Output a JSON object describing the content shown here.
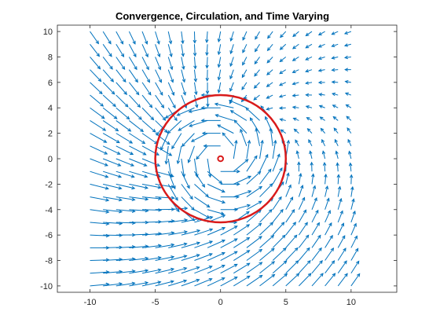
{
  "chart_data": {
    "type": "quiver",
    "title": "Convergence, Circulation, and Time Varying",
    "xlabel": "",
    "ylabel": "",
    "xlim": [
      -12.5,
      13.5
    ],
    "ylim": [
      -10.5,
      10.5
    ],
    "x_ticks": [
      -10,
      -5,
      0,
      5,
      10
    ],
    "y_ticks": [
      -10,
      -8,
      -6,
      -4,
      -2,
      0,
      2,
      4,
      6,
      8,
      10
    ],
    "x_tick_labels": [
      "-10",
      "-5",
      "0",
      "5",
      "10"
    ],
    "y_tick_labels": [
      "-10",
      "-8",
      "-6",
      "-4",
      "-2",
      "0",
      "2",
      "4",
      "6",
      "8",
      "10"
    ],
    "grid": false,
    "legend": "none",
    "field": {
      "x_range": [
        -10,
        10
      ],
      "y_range": [
        -10,
        10
      ],
      "step": 1,
      "color": "#0072BD",
      "description_omitted": true
    },
    "circles": [
      {
        "center": [
          0,
          0
        ],
        "radius": 5,
        "color": "#D91A1A"
      },
      {
        "center": [
          0,
          0
        ],
        "radius": 0.2,
        "color": "#D91A1A"
      }
    ]
  }
}
